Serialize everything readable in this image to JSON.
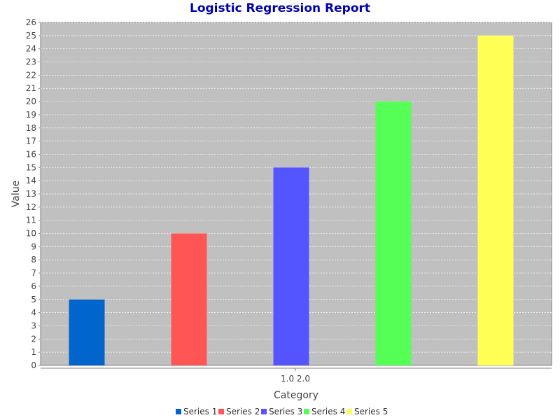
{
  "colors": {
    "title": "#0000b4",
    "plot_background": "#c0c0c0",
    "gridline": "#ffffff",
    "axis_line": "#808080",
    "tick_text": "#444444"
  },
  "chart_data": {
    "type": "bar",
    "title": "Logistic Regression Report",
    "xlabel": "Category",
    "ylabel": "Value",
    "categories": [
      "1.0 2.0"
    ],
    "series": [
      {
        "name": "Series 1",
        "values": [
          5
        ],
        "color": "#0066cc"
      },
      {
        "name": "Series 2",
        "values": [
          10
        ],
        "color": "#ff5555"
      },
      {
        "name": "Series 3",
        "values": [
          15
        ],
        "color": "#5555ff"
      },
      {
        "name": "Series 4",
        "values": [
          20
        ],
        "color": "#55ff55"
      },
      {
        "name": "Series 5",
        "values": [
          25
        ],
        "color": "#ffff55"
      }
    ],
    "ylim": [
      0,
      26
    ],
    "ytick_step": 1,
    "grid": true,
    "legend_position": "bottom"
  }
}
